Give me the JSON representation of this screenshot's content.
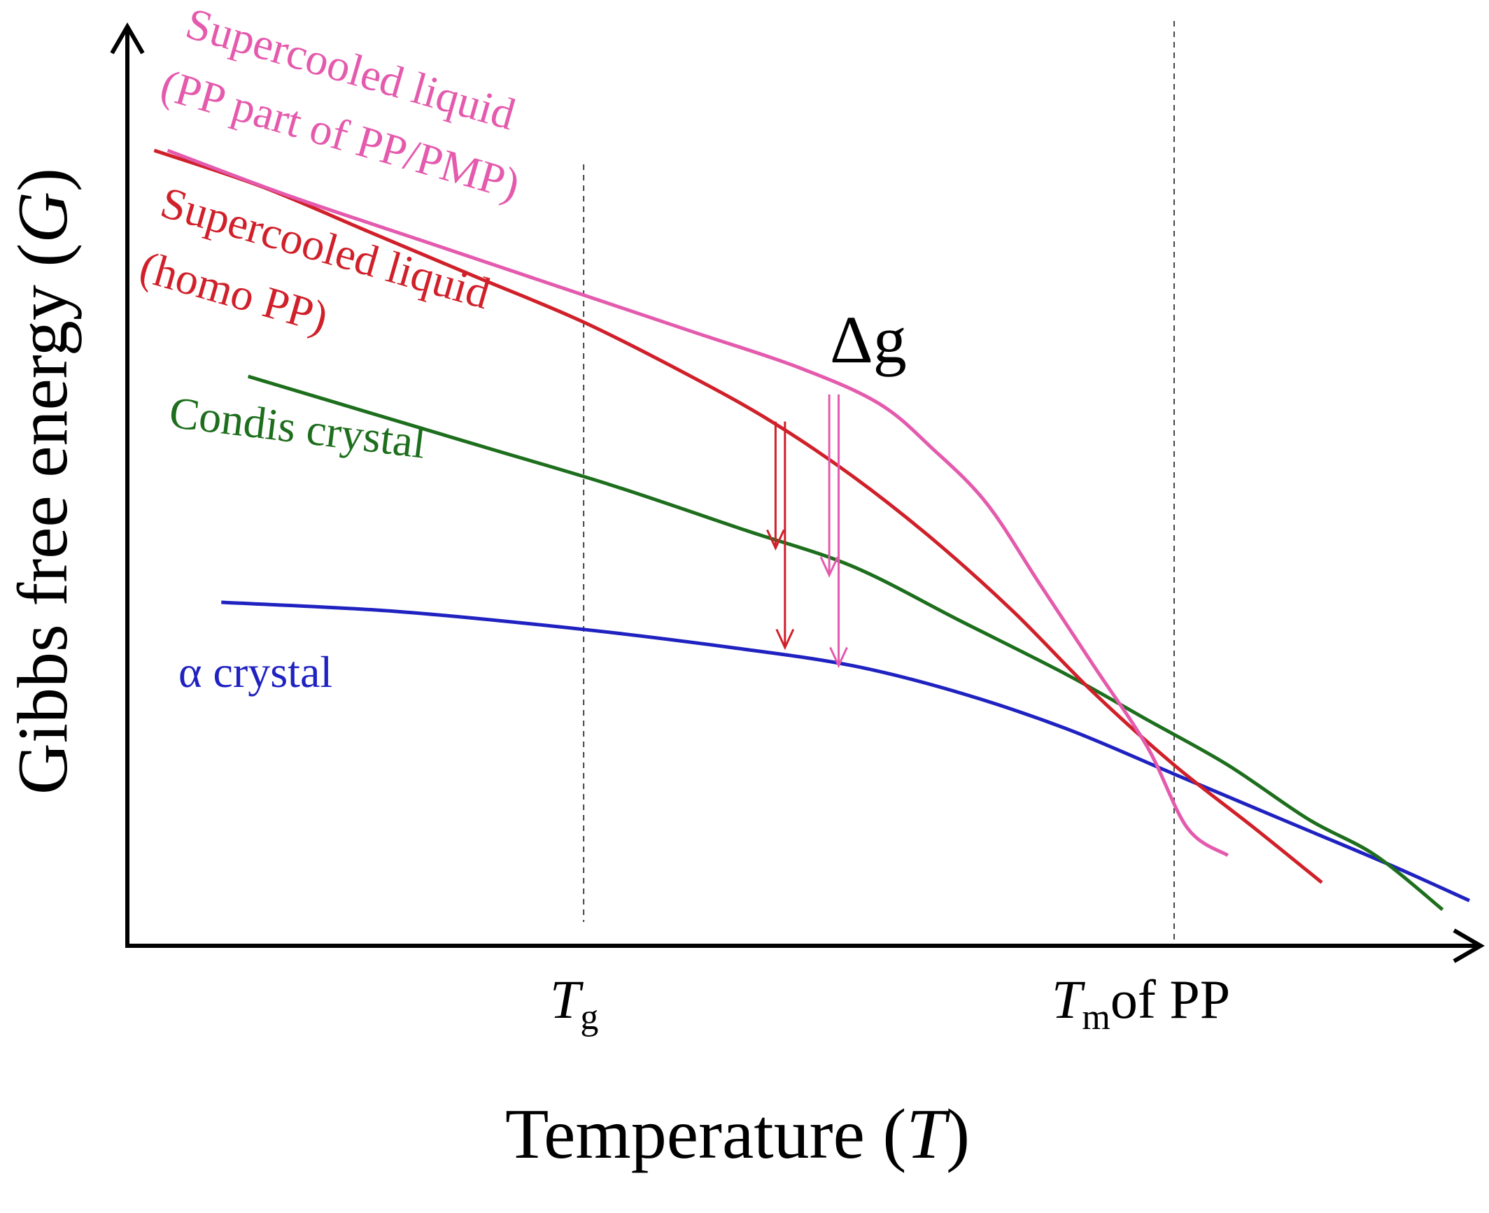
{
  "chart_data": {
    "type": "line",
    "xlabel": "Temperature (T)",
    "xlabel_main": "Temperature (",
    "xlabel_italic": "T",
    "xlabel_close": ")",
    "ylabel_main": "Gibbs free energy (",
    "ylabel_italic": "G",
    "ylabel_close": ")",
    "xlim": [
      0,
      100
    ],
    "ylim": [
      0,
      100
    ],
    "grid": false,
    "ticks": [
      {
        "x": 34,
        "main": "T",
        "sub": "g",
        "suffix": ""
      },
      {
        "x": 78,
        "main": "T",
        "sub": "m",
        "suffix": "of PP"
      }
    ],
    "reference_lines": [
      {
        "name": "Tg",
        "x": 34
      },
      {
        "name": "Tm",
        "x": 78
      }
    ],
    "colors": {
      "pp_pmp": "#e45aad",
      "homo": "#d0202a",
      "condis": "#1d6e1d",
      "alpha": "#1f22c0",
      "axis": "#000000"
    },
    "series": [
      {
        "key": "pp_pmp",
        "label_lines": [
          "Supercooled liquid",
          "(PP part of PP/PMP)"
        ],
        "color": "#e45aad",
        "points": [
          [
            3,
            88
          ],
          [
            12,
            83
          ],
          [
            22,
            78
          ],
          [
            32,
            73
          ],
          [
            42,
            68
          ],
          [
            50,
            64
          ],
          [
            56,
            60
          ],
          [
            60,
            55
          ],
          [
            64,
            49
          ],
          [
            68,
            40
          ],
          [
            72,
            31
          ],
          [
            76,
            22
          ],
          [
            79,
            13
          ],
          [
            82,
            10
          ]
        ]
      },
      {
        "key": "homo",
        "label_lines": [
          "Supercooled liquid",
          "(homo PP)"
        ],
        "color": "#d0202a",
        "points": [
          [
            2,
            88
          ],
          [
            10,
            84
          ],
          [
            18,
            79
          ],
          [
            26,
            74
          ],
          [
            34,
            69
          ],
          [
            42,
            63
          ],
          [
            48,
            58
          ],
          [
            54,
            52
          ],
          [
            60,
            45
          ],
          [
            66,
            37
          ],
          [
            72,
            28
          ],
          [
            78,
            20
          ],
          [
            84,
            13
          ],
          [
            89,
            7
          ]
        ]
      },
      {
        "key": "condis",
        "label_lines": [
          "Condis crystal"
        ],
        "color": "#1d6e1d",
        "points": [
          [
            9,
            63
          ],
          [
            18,
            59
          ],
          [
            27,
            55
          ],
          [
            36,
            51
          ],
          [
            46,
            46
          ],
          [
            54,
            42
          ],
          [
            62,
            36
          ],
          [
            70,
            30
          ],
          [
            76,
            25
          ],
          [
            82,
            20
          ],
          [
            88,
            14
          ],
          [
            93,
            10
          ],
          [
            98,
            4
          ]
        ]
      },
      {
        "key": "alpha",
        "label_lines": [
          "α crystal"
        ],
        "color": "#1f22c0",
        "points": [
          [
            7,
            38
          ],
          [
            20,
            37
          ],
          [
            34,
            35
          ],
          [
            45,
            33
          ],
          [
            54,
            31
          ],
          [
            62,
            28
          ],
          [
            70,
            24
          ],
          [
            78,
            19
          ],
          [
            86,
            14
          ],
          [
            94,
            9
          ],
          [
            100,
            5
          ]
        ]
      }
    ],
    "delta_g": {
      "label": "Δg",
      "arrows": [
        {
          "color": "#d0202a",
          "x": 48.3,
          "y_from": 58,
          "y_to": 44
        },
        {
          "color": "#d0202a",
          "x": 49.0,
          "y_from": 58,
          "y_to": 33
        },
        {
          "color": "#e45aad",
          "x": 52.3,
          "y_from": 61,
          "y_to": 41
        },
        {
          "color": "#e45aad",
          "x": 53.0,
          "y_from": 61,
          "y_to": 31
        }
      ]
    }
  }
}
